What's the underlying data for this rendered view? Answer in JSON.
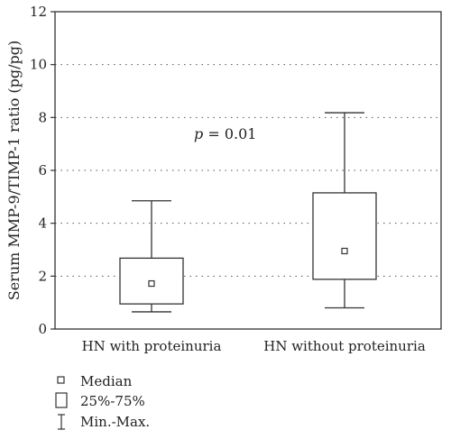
{
  "chart_data": {
    "type": "box",
    "title": "",
    "xlabel": "",
    "ylabel": "Serum MMP-9/TIMP-1 ratio (pg/pg)",
    "ylim": [
      0,
      12
    ],
    "yticks": [
      "0",
      "2",
      "4",
      "6",
      "8",
      "10",
      "12"
    ],
    "grid": "horizontal-dotted",
    "categories": [
      "HN with proteinuria",
      "HN without proteinuria"
    ],
    "boxes": [
      {
        "category": "HN with proteinuria",
        "min": 0.65,
        "q1": 0.95,
        "median": 1.72,
        "q3": 2.68,
        "max": 4.85
      },
      {
        "category": "HN without proteinuria",
        "min": 0.8,
        "q1": 1.88,
        "median": 2.95,
        "q3": 5.15,
        "max": 8.18
      }
    ],
    "annotation": {
      "italic": "p",
      "rest": " = 0.01"
    },
    "legend": [
      "Median",
      "25%-75%",
      "Min.-Max."
    ],
    "legend_position": "bottom-left"
  }
}
